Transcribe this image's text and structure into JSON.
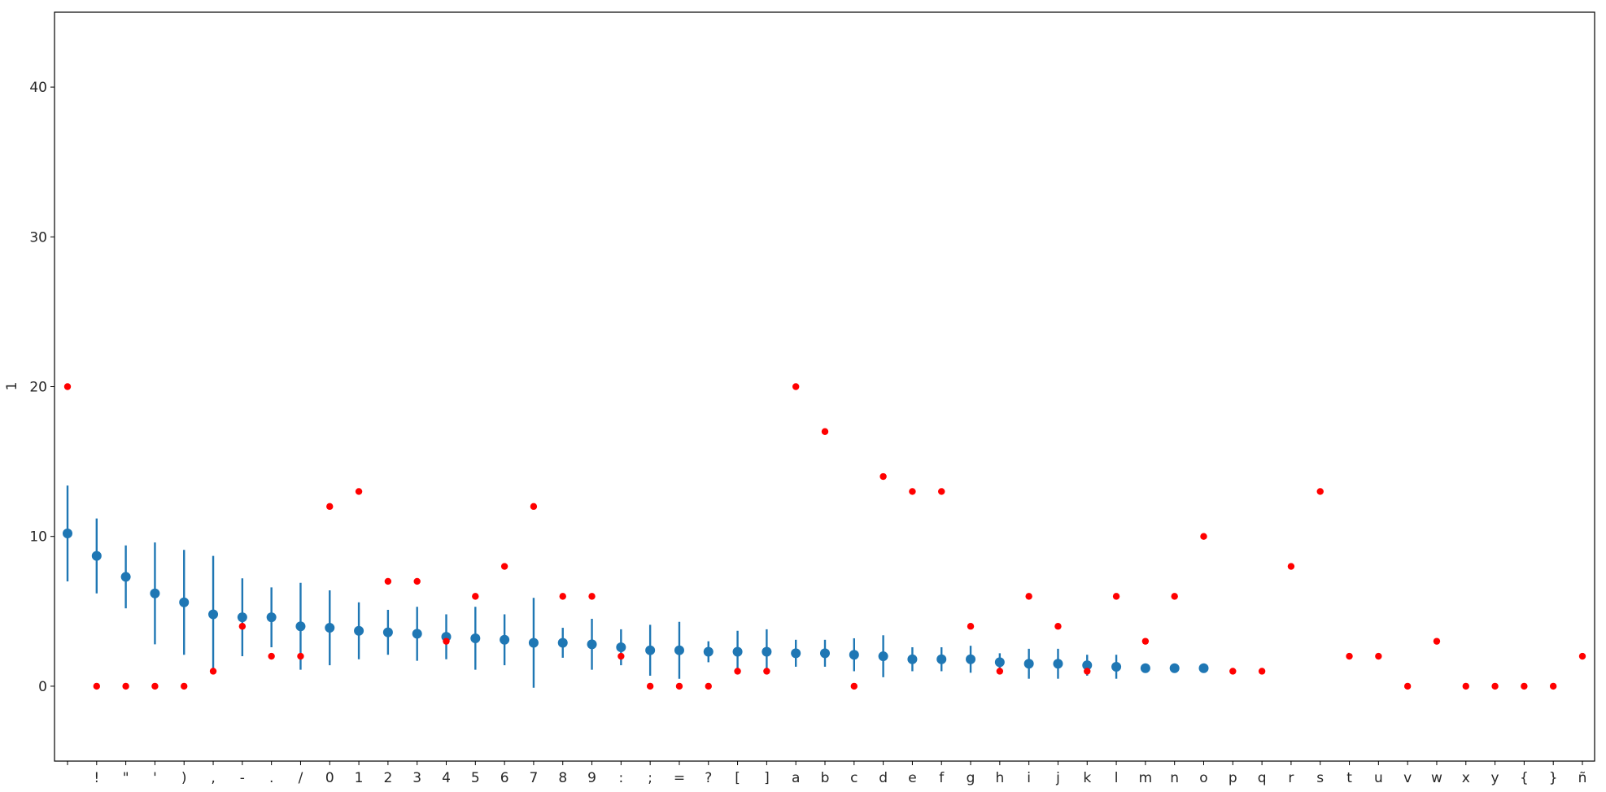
{
  "chart_data": {
    "type": "scatter",
    "title": "",
    "xlabel": "",
    "ylabel": "1",
    "ylim": [
      -5,
      45
    ],
    "yticks": [
      0,
      10,
      20,
      30,
      40
    ],
    "grid": false,
    "categories": [
      " ",
      "!",
      "\"",
      "'",
      ")",
      ",",
      "-",
      ".",
      "/",
      "0",
      "1",
      "2",
      "3",
      "4",
      "5",
      "6",
      "7",
      "8",
      "9",
      ":",
      ";",
      "=",
      "?",
      "[",
      "]",
      "a",
      "b",
      "c",
      "d",
      "e",
      "f",
      "g",
      "h",
      "i",
      "j",
      "k",
      "l",
      "m",
      "n",
      "o",
      "p",
      "q",
      "r",
      "s",
      "t",
      "u",
      "v",
      "w",
      "x",
      "y",
      "{",
      "}",
      "ñ"
    ],
    "series": [
      {
        "kind": "errorbar",
        "color": "#1f77b4",
        "values": [
          10.2,
          8.7,
          7.3,
          6.2,
          5.6,
          4.8,
          4.6,
          4.6,
          4.0,
          3.9,
          3.7,
          3.6,
          3.5,
          3.3,
          3.2,
          3.1,
          2.9,
          2.9,
          2.8,
          2.6,
          2.4,
          2.4,
          2.3,
          2.3,
          2.3,
          2.2,
          2.2,
          2.1,
          2.0,
          1.8,
          1.8,
          1.8,
          1.6,
          1.5,
          1.5,
          1.4,
          1.3,
          1.2,
          1.2,
          1.2,
          null,
          null,
          null,
          null,
          null,
          null,
          null,
          null,
          null,
          null,
          null,
          null,
          null
        ],
        "error": [
          3.2,
          2.5,
          2.1,
          3.4,
          3.5,
          3.9,
          2.6,
          2.0,
          2.9,
          2.5,
          1.9,
          1.5,
          1.8,
          1.5,
          2.1,
          1.7,
          3.0,
          1.0,
          1.7,
          1.2,
          1.7,
          1.9,
          0.7,
          1.4,
          1.5,
          0.9,
          0.9,
          1.1,
          1.4,
          0.8,
          0.8,
          0.9,
          0.6,
          1.0,
          1.0,
          0.7,
          0.8,
          0.3,
          0.3,
          0.3,
          null,
          null,
          null,
          null,
          null,
          null,
          null,
          null,
          null,
          null,
          null,
          null,
          null
        ]
      },
      {
        "kind": "points",
        "color": "#ff0000",
        "values": [
          20,
          0,
          0,
          0,
          0,
          1,
          4,
          2,
          2,
          12,
          13,
          7,
          7,
          3,
          6,
          8,
          12,
          6,
          6,
          2,
          0,
          0,
          0,
          1,
          1,
          20,
          17,
          0,
          14,
          13,
          13,
          4,
          1,
          6,
          4,
          1,
          6,
          3,
          6,
          10,
          1,
          1,
          8,
          13,
          2,
          2,
          0,
          3,
          0,
          0,
          0,
          0,
          2
        ]
      }
    ]
  }
}
